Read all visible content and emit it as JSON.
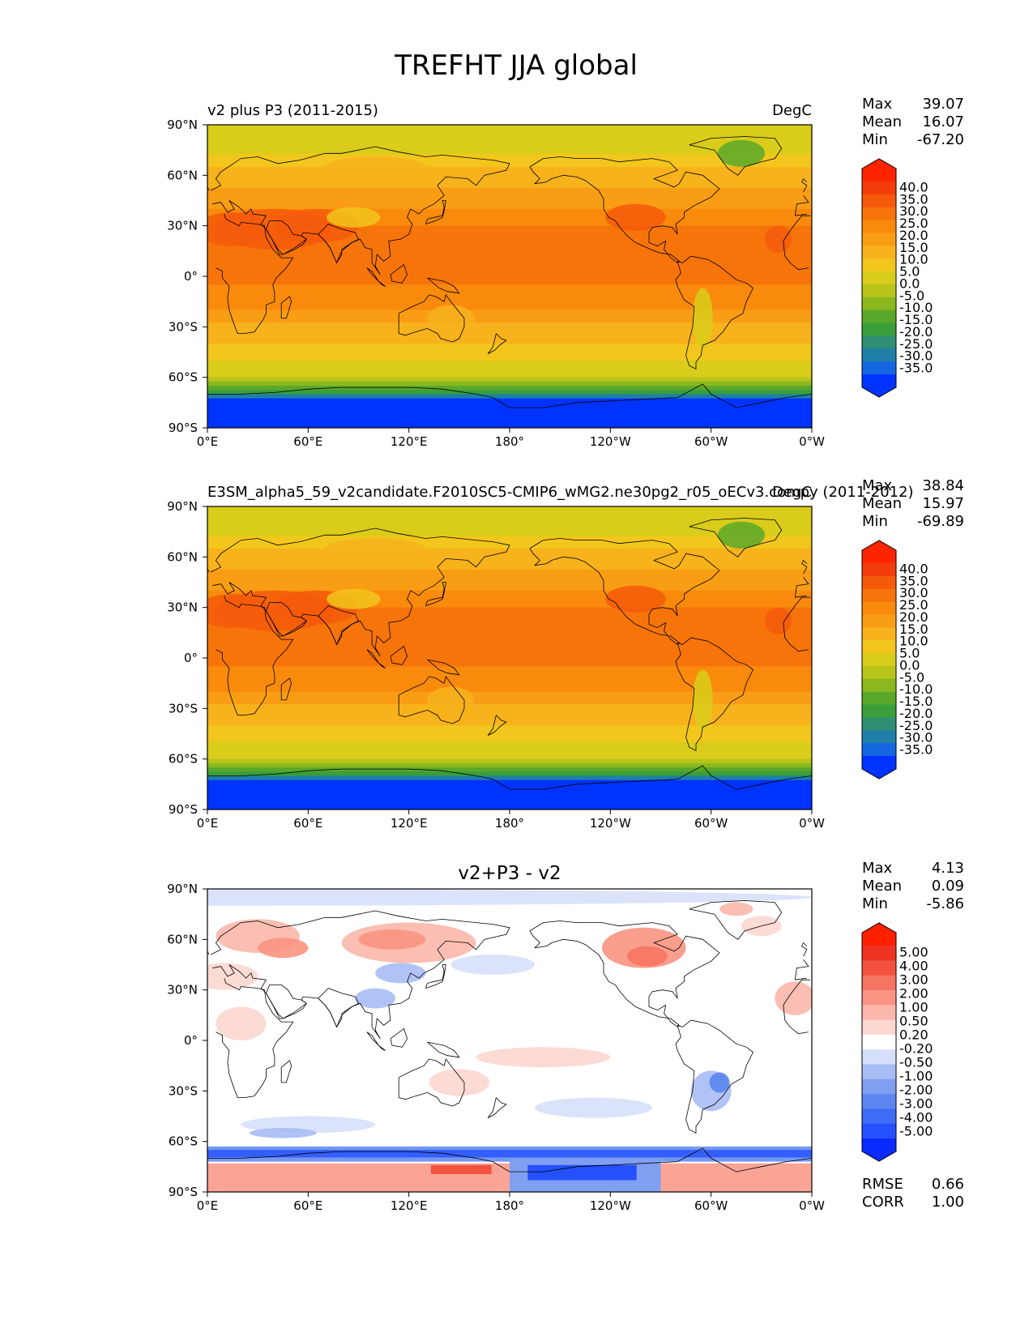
{
  "title": "TREFHT JJA global",
  "axes": {
    "x_ticks": [
      "0°E",
      "60°E",
      "120°E",
      "180°",
      "120°W",
      "60°W",
      "0°W"
    ],
    "y_ticks": [
      "90°N",
      "60°N",
      "30°N",
      "0°",
      "30°S",
      "60°S",
      "90°S"
    ]
  },
  "colors": {
    "temp_scale": [
      "#0033ff",
      "#1366e0",
      "#1f7fa8",
      "#2f8f74",
      "#3a9e3a",
      "#5aa82a",
      "#8ab81e",
      "#b8c41a",
      "#d9cc1a",
      "#f2c61c",
      "#f7b21c",
      "#f99d14",
      "#f98a0c",
      "#f7740a",
      "#f55a0a",
      "#f23d0a",
      "#ff2400"
    ],
    "diff_scale": [
      "#0a2aff",
      "#2450ff",
      "#3e6cf5",
      "#5c86f0",
      "#7f9ff0",
      "#a9bdf5",
      "#d6e0fa",
      "#ffffff",
      "#fcd7d0",
      "#fbb7ab",
      "#f99482",
      "#f67462",
      "#f2523f",
      "#ee3322",
      "#ff2000"
    ]
  },
  "panels": [
    {
      "name": "test",
      "title_left": "v2 plus P3 (2011-2015)",
      "title_center": "",
      "title_right": "DegC",
      "stats": [
        {
          "label": "Max",
          "value": "39.07"
        },
        {
          "label": "Mean",
          "value": "16.07"
        },
        {
          "label": "Min",
          "value": "-67.20"
        }
      ],
      "colorbar_labels": [
        "40.0",
        "35.0",
        "30.0",
        "25.0",
        "20.0",
        "15.0",
        "10.0",
        "5.0",
        "0.0",
        "-5.0",
        "-10.0",
        "-15.0",
        "-20.0",
        "-25.0",
        "-30.0",
        "-35.0"
      ],
      "extra_stats": []
    },
    {
      "name": "reference",
      "title_left": "E3SM_alpha5_59_v2candidate.F2010SC5-CMIP6_wMG2.ne30pg2_r05_oECv3.compy (2011-2012)",
      "title_center": "",
      "title_right": "DegC",
      "stats": [
        {
          "label": "Max",
          "value": "38.84"
        },
        {
          "label": "Mean",
          "value": "15.97"
        },
        {
          "label": "Min",
          "value": "-69.89"
        }
      ],
      "colorbar_labels": [
        "40.0",
        "35.0",
        "30.0",
        "25.0",
        "20.0",
        "15.0",
        "10.0",
        "5.0",
        "0.0",
        "-5.0",
        "-10.0",
        "-15.0",
        "-20.0",
        "-25.0",
        "-30.0",
        "-35.0"
      ],
      "extra_stats": []
    },
    {
      "name": "difference",
      "title_left": "",
      "title_center": "v2+P3 - v2",
      "title_right": "",
      "stats": [
        {
          "label": "Max",
          "value": "4.13"
        },
        {
          "label": "Mean",
          "value": "0.09"
        },
        {
          "label": "Min",
          "value": "-5.86"
        }
      ],
      "colorbar_labels": [
        "5.00",
        "4.00",
        "3.00",
        "2.00",
        "1.00",
        "0.50",
        "0.20",
        "-0.20",
        "-0.50",
        "-1.00",
        "-2.00",
        "-3.00",
        "-4.00",
        "-5.00"
      ],
      "extra_stats": [
        {
          "label": "RMSE",
          "value": "0.66"
        },
        {
          "label": "CORR",
          "value": "1.00"
        }
      ]
    }
  ],
  "chart_data": [
    {
      "type": "heatmap",
      "title": "v2 plus P3 (2011-2015)",
      "units": "DegC",
      "xlim": [
        0,
        360
      ],
      "ylim": [
        -90,
        90
      ],
      "x_tick_values": [
        0,
        60,
        120,
        180,
        240,
        300,
        360
      ],
      "y_tick_values": [
        90,
        60,
        30,
        0,
        -30,
        -60,
        -90
      ],
      "levels": [
        -35,
        -30,
        -25,
        -20,
        -15,
        -10,
        -5,
        0,
        5,
        10,
        15,
        20,
        25,
        30,
        35,
        40
      ],
      "zonal_mean_profile": {
        "lat": [
          90,
          75,
          60,
          45,
          30,
          15,
          0,
          -15,
          -30,
          -45,
          -60,
          -70,
          -75,
          -90
        ],
        "value": [
          2,
          4,
          12,
          18,
          25,
          27,
          26,
          23,
          14,
          8,
          0,
          -20,
          -50,
          -55
        ]
      },
      "max": 39.07,
      "mean": 16.07,
      "min": -67.2
    },
    {
      "type": "heatmap",
      "title": "E3SM_alpha5_59_v2candidate.F2010SC5-CMIP6_wMG2.ne30pg2_r05_oECv3.compy (2011-2012)",
      "units": "DegC",
      "xlim": [
        0,
        360
      ],
      "ylim": [
        -90,
        90
      ],
      "x_tick_values": [
        0,
        60,
        120,
        180,
        240,
        300,
        360
      ],
      "y_tick_values": [
        90,
        60,
        30,
        0,
        -30,
        -60,
        -90
      ],
      "levels": [
        -35,
        -30,
        -25,
        -20,
        -15,
        -10,
        -5,
        0,
        5,
        10,
        15,
        20,
        25,
        30,
        35,
        40
      ],
      "zonal_mean_profile": {
        "lat": [
          90,
          75,
          60,
          45,
          30,
          15,
          0,
          -15,
          -30,
          -45,
          -60,
          -70,
          -75,
          -90
        ],
        "value": [
          2,
          4,
          12,
          18,
          25,
          27,
          26,
          23,
          14,
          8,
          0,
          -20,
          -50,
          -55
        ]
      },
      "max": 38.84,
      "mean": 15.97,
      "min": -69.89
    },
    {
      "type": "heatmap",
      "title": "v2+P3 - v2",
      "xlim": [
        0,
        360
      ],
      "ylim": [
        -90,
        90
      ],
      "x_tick_values": [
        0,
        60,
        120,
        180,
        240,
        300,
        360
      ],
      "y_tick_values": [
        90,
        60,
        30,
        0,
        -30,
        -60,
        -90
      ],
      "levels": [
        -5,
        -4,
        -3,
        -2,
        -1,
        -0.5,
        -0.2,
        0.2,
        0.5,
        1,
        2,
        3,
        4,
        5
      ],
      "max": 4.13,
      "mean": 0.09,
      "min": -5.86,
      "rmse": 0.66,
      "corr": 1.0
    }
  ]
}
